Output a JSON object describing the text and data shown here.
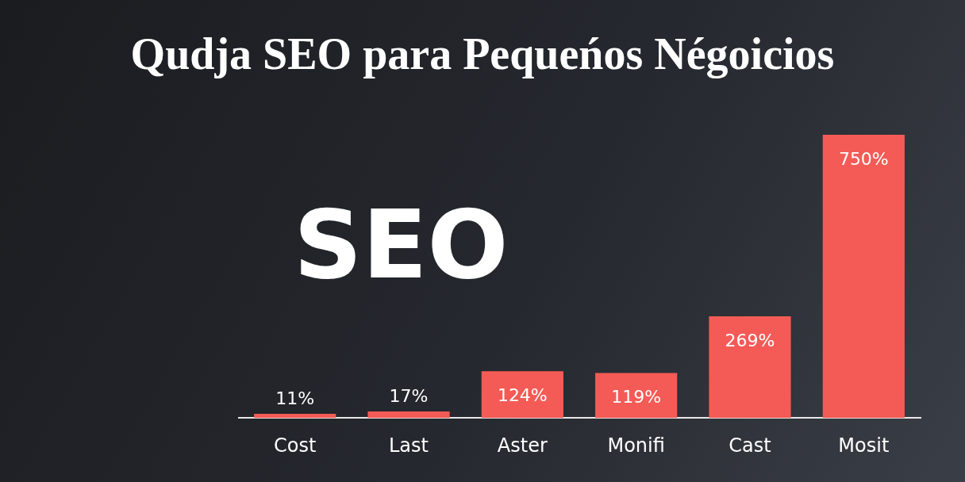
{
  "chart_data": {
    "type": "bar",
    "title": "Qudja SEO para Pequeńos Négoicios",
    "categories": [
      "Cost",
      "Last",
      "Aster",
      "Monifi",
      "Cast",
      "Mosit"
    ],
    "values": [
      11,
      17,
      124,
      119,
      269,
      750
    ],
    "value_labels": [
      "11%",
      "17%",
      "124%",
      "119%",
      "269%",
      "750%"
    ],
    "color": "#f45b56",
    "annotations": [
      "SEO"
    ],
    "grid": false,
    "legend": false
  }
}
